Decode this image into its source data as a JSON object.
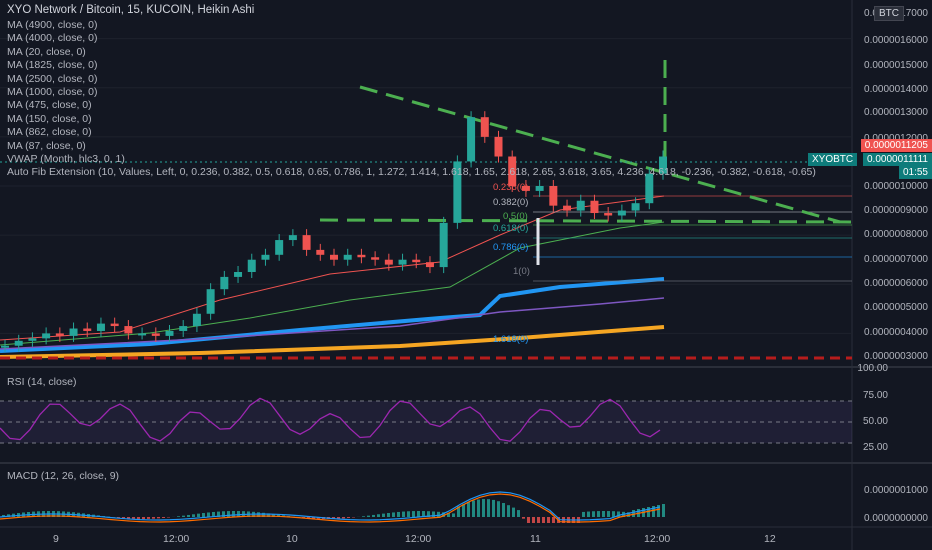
{
  "header": {
    "title": "XYO Network / Bitcoin, 15, KUCOIN, Heikin Ashi",
    "currency_badge": "BTC"
  },
  "indicators": [
    "MA (4900, close, 0)",
    "MA (4000, close, 0)",
    "MA (20, close, 0)",
    "MA (1825, close, 0)",
    "MA (2500, close, 0)",
    "MA (1000, close, 0)",
    "MA (475, close, 0)",
    "MA (150, close, 0)",
    "MA (862, close, 0)",
    "MA (87, close, 0)",
    "VWAP (Month, hlc3, 0, 1)",
    "Auto Fib Extension (10, Values, Left, 0, 0.236, 0.382, 0.5, 0.618, 0.65, 0.786, 1, 1.272, 1.414, 1.618, 1.65, 2.618, 2.65, 3.618, 3.65, 4.236, 4.618, -0.236, -0.382, -0.618, -0.65)"
  ],
  "price_axis": {
    "labels": [
      "0.0000017000",
      "0.0000016000",
      "0.0000015000",
      "0.0000014000",
      "0.0000013000",
      "0.0000012000",
      "0.0000010000",
      "0.0000009000",
      "0.0000008000",
      "0.0000007000",
      "0.0000006000",
      "0.0000005000",
      "0.0000004000",
      "0.0000003000"
    ],
    "last_price": "0.0000011205",
    "symbol_tag": "XYOBTC",
    "symbol_price": "0.0000011111",
    "countdown": "01:55"
  },
  "fib_labels": [
    "0.236(0)",
    "0.382(0)",
    "0.5(0)",
    "0.618(0)",
    "0.786(0)",
    "1(0)",
    "1.618(0)"
  ],
  "rsi": {
    "title": "RSI (14, close)",
    "axis": [
      "100.00",
      "75.00",
      "50.00",
      "25.00"
    ]
  },
  "macd": {
    "title": "MACD (12, 26, close, 9)",
    "axis": [
      "0.0000001000",
      "0.0000000000"
    ]
  },
  "time_axis": [
    "9",
    "12:00",
    "10",
    "12:00",
    "11",
    "12:00",
    "12"
  ],
  "colors": {
    "background": "#131722",
    "up": "#26a69a",
    "down": "#ef5350",
    "accent": "#2196f3",
    "ma_orange": "#f5a623",
    "trend_green": "#4caf50",
    "rsi": "#9c27b0"
  },
  "chart_data": {
    "type": "candlestick",
    "series": [
      {
        "name": "XYOBTC",
        "values": [
          3.5e-07,
          3.7e-07,
          3.8e-07,
          4e-07,
          3.9e-07,
          4.2e-07,
          4.1e-07,
          4.4e-07,
          4.3e-07,
          4e-07,
          4e-07,
          3.9e-07,
          4.1e-07,
          4.3e-07,
          4.8e-07,
          5.8e-07,
          6.3e-07,
          6.5e-07,
          7e-07,
          7.2e-07,
          7.8e-07,
          8e-07,
          7.4e-07,
          7.2e-07,
          7e-07,
          7.2e-07,
          7.1e-07,
          7e-07,
          6.8e-07,
          7e-07,
          6.9e-07,
          6.7e-07,
          8.5e-07,
          1.1e-06,
          1.28e-06,
          1.2e-06,
          1.12e-06,
          1e-06,
          9.8e-07,
          1e-06,
          9.2e-07,
          9e-07,
          9.4e-07,
          8.9e-07,
          8.8e-07,
          9e-07,
          9.3e-07,
          1.05e-06,
          1.12e-06
        ]
      }
    ]
  }
}
